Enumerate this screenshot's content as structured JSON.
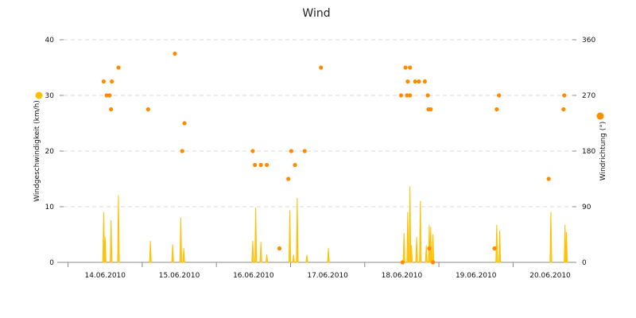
{
  "chart_data": {
    "type": "line",
    "title": "Wind",
    "colors": {
      "speed": "#FFC000",
      "direction": "#FF8C00"
    },
    "x_axis": {
      "tick_labels": [
        "14.06.2010",
        "15.06.2010",
        "16.06.2010",
        "17.06.2010",
        "18.06.2010",
        "19.06.2010",
        "20.06.2010"
      ],
      "range": [
        -0.56,
        6.3
      ]
    },
    "y_axis_left": {
      "label": "Windgeschwindigkeit (km/h)",
      "range": [
        0,
        40
      ],
      "ticks": [
        0,
        10,
        20,
        30,
        40
      ]
    },
    "y_axis_right": {
      "label": "Windrichtung (°)",
      "range": [
        0,
        360
      ],
      "ticks": [
        0,
        90,
        180,
        270,
        360
      ]
    },
    "grid": true,
    "series": [
      {
        "name": "Windgeschwindigkeit (km/h)",
        "axis": "left",
        "kind": "spikes",
        "points": [
          [
            -0.02,
            9
          ],
          [
            0.0,
            4.5
          ],
          [
            0.08,
            7.5
          ],
          [
            0.18,
            12
          ],
          [
            0.61,
            3.8
          ],
          [
            0.91,
            3.2
          ],
          [
            1.02,
            8
          ],
          [
            1.06,
            2.5
          ],
          [
            1.99,
            3.8
          ],
          [
            2.03,
            9.8
          ],
          [
            2.1,
            3.6
          ],
          [
            2.18,
            1.4
          ],
          [
            2.49,
            9.3
          ],
          [
            2.54,
            1.3
          ],
          [
            2.59,
            11.5
          ],
          [
            2.72,
            1.3
          ],
          [
            3.01,
            2.5
          ],
          [
            4.03,
            5.2
          ],
          [
            4.08,
            9
          ],
          [
            4.11,
            13.6
          ],
          [
            4.13,
            3
          ],
          [
            4.2,
            4.5
          ],
          [
            4.25,
            11
          ],
          [
            4.33,
            3
          ],
          [
            4.37,
            6.7
          ],
          [
            4.39,
            6.3
          ],
          [
            4.42,
            5
          ],
          [
            5.28,
            6.7
          ],
          [
            5.32,
            5.6
          ],
          [
            6.01,
            9
          ],
          [
            6.2,
            6.7
          ],
          [
            6.22,
            5.4
          ]
        ]
      },
      {
        "name": "Windrichtung (°)",
        "axis": "right",
        "kind": "scatter",
        "points": [
          [
            -0.02,
            292.5
          ],
          [
            0.02,
            270
          ],
          [
            0.06,
            270
          ],
          [
            0.08,
            247.5
          ],
          [
            0.09,
            292.5
          ],
          [
            0.18,
            315
          ],
          [
            0.58,
            247.5
          ],
          [
            0.94,
            337.5
          ],
          [
            1.04,
            180
          ],
          [
            1.07,
            225
          ],
          [
            1.99,
            180
          ],
          [
            2.02,
            157.5
          ],
          [
            2.1,
            157.5
          ],
          [
            2.18,
            157.5
          ],
          [
            2.35,
            22.5
          ],
          [
            2.47,
            135
          ],
          [
            2.51,
            180
          ],
          [
            2.56,
            157.5
          ],
          [
            2.69,
            180
          ],
          [
            2.91,
            315
          ],
          [
            3.99,
            270
          ],
          [
            4.01,
            0
          ],
          [
            4.05,
            315
          ],
          [
            4.07,
            270
          ],
          [
            4.08,
            292.5
          ],
          [
            4.11,
            270
          ],
          [
            4.11,
            315
          ],
          [
            4.18,
            292.5
          ],
          [
            4.23,
            292.5
          ],
          [
            4.31,
            292.5
          ],
          [
            4.35,
            270
          ],
          [
            4.36,
            247.5
          ],
          [
            4.37,
            22.5
          ],
          [
            4.39,
            247.5
          ],
          [
            4.42,
            0
          ],
          [
            5.25,
            22.5
          ],
          [
            5.28,
            247.5
          ],
          [
            5.31,
            270
          ],
          [
            5.98,
            135
          ],
          [
            6.18,
            247.5
          ],
          [
            6.19,
            270
          ]
        ]
      }
    ]
  }
}
